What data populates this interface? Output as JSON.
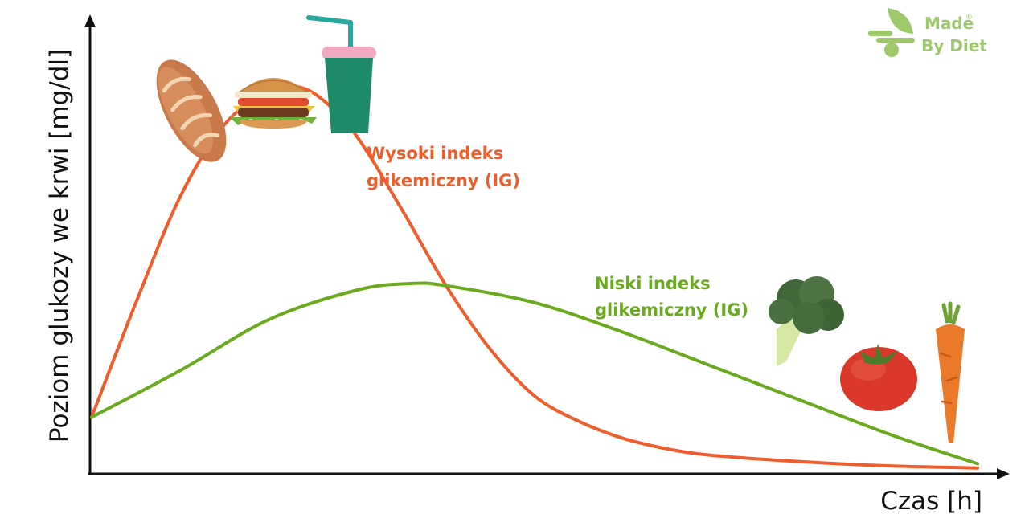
{
  "chart_data": {
    "type": "line",
    "xlabel": "Czas [h]",
    "ylabel": "Poziom glukozy we krwi [mg/dl]",
    "xlim": [
      0,
      10
    ],
    "ylim": [
      0,
      10
    ],
    "grid": false,
    "legend": "none",
    "series": [
      {
        "name": "Wysoki indeks glikemiczny (IG)",
        "color": "#ee5d2b",
        "x": [
          0,
          0.5,
          1.0,
          1.5,
          2.0,
          2.3,
          2.6,
          3.0,
          3.5,
          4.0,
          4.5,
          5.0,
          5.5,
          6.0,
          6.5,
          7.0,
          8.0,
          9.0,
          10.0
        ],
        "y": [
          1.3,
          4.0,
          6.5,
          8.2,
          9.0,
          9.1,
          8.8,
          7.9,
          6.2,
          4.4,
          2.9,
          1.8,
          1.2,
          0.8,
          0.55,
          0.4,
          0.25,
          0.15,
          0.1
        ]
      },
      {
        "name": "Niski indeks glikemiczny (IG)",
        "color": "#6aaa1e",
        "x": [
          0,
          1.0,
          2.0,
          3.0,
          3.6,
          4.0,
          5.0,
          6.0,
          7.0,
          8.0,
          9.0,
          10.0
        ],
        "y": [
          1.3,
          2.4,
          3.6,
          4.3,
          4.45,
          4.4,
          4.0,
          3.3,
          2.5,
          1.7,
          0.9,
          0.2
        ]
      }
    ]
  },
  "logo": {
    "line1": "Made",
    "line2": "By Diet",
    "mark": "®",
    "color": "#9dc96a"
  },
  "icons": [
    "bread-icon",
    "burger-icon",
    "soda-cup-icon",
    "broccoli-icon",
    "tomato-icon",
    "carrot-icon"
  ]
}
